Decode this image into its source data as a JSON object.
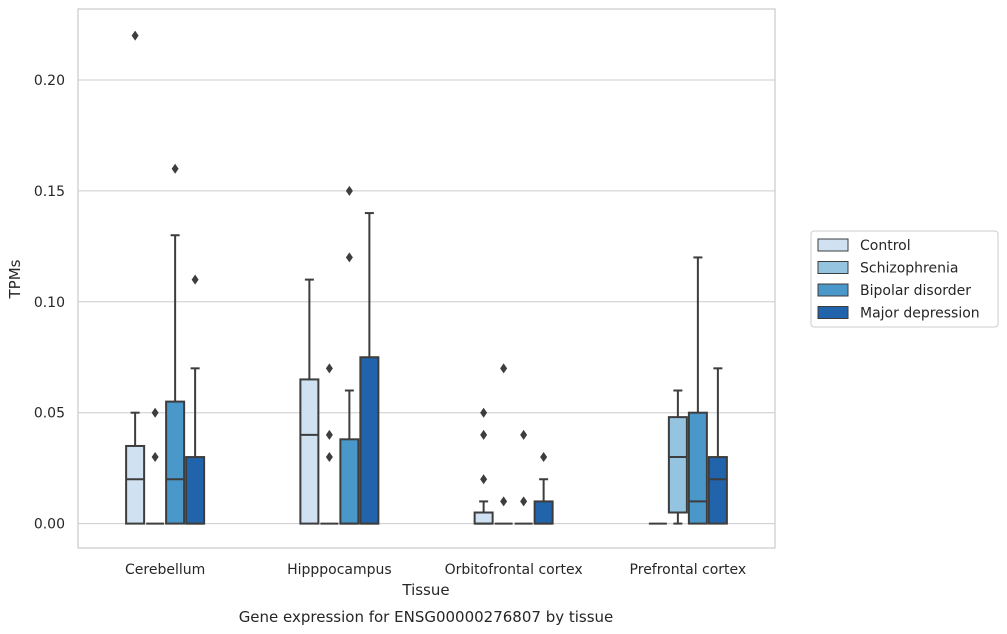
{
  "chart_data": {
    "type": "boxplot",
    "title": "",
    "caption": "Gene expression for ENSG00000276807 by tissue",
    "xlabel": "Tissue",
    "ylabel": "TPMs",
    "ylim": [
      -0.011,
      0.232
    ],
    "yticks": [
      0.0,
      0.05,
      0.1,
      0.15,
      0.2
    ],
    "ytick_labels": [
      "0.00",
      "0.05",
      "0.10",
      "0.15",
      "0.20"
    ],
    "grid": "horizontal",
    "legend_position": "right",
    "categories": [
      "Cerebellum",
      "Hipppocampus",
      "Orbitofrontal cortex",
      "Prefrontal cortex"
    ],
    "series": [
      {
        "name": "Control",
        "color": "#d0e1f2",
        "boxes": [
          {
            "whislo": 0.0,
            "q1": 0.0,
            "med": 0.02,
            "q3": 0.035,
            "whishi": 0.05,
            "fliers": [
              0.22
            ]
          },
          {
            "whislo": 0.0,
            "q1": 0.0,
            "med": 0.04,
            "q3": 0.065,
            "whishi": 0.11,
            "fliers": []
          },
          {
            "whislo": 0.0,
            "q1": 0.0,
            "med": 0.0,
            "q3": 0.005,
            "whishi": 0.01,
            "fliers": [
              0.02,
              0.04,
              0.05
            ]
          },
          {
            "whislo": 0.0,
            "q1": 0.0,
            "med": 0.0,
            "q3": 0.0,
            "whishi": 0.0,
            "fliers": []
          }
        ]
      },
      {
        "name": "Schizophrenia",
        "color": "#94c4df",
        "boxes": [
          {
            "whislo": 0.0,
            "q1": 0.0,
            "med": 0.0,
            "q3": 0.0,
            "whishi": 0.0,
            "fliers": [
              0.03,
              0.05
            ]
          },
          {
            "whislo": 0.0,
            "q1": 0.0,
            "med": 0.0,
            "q3": 0.0,
            "whishi": 0.0,
            "fliers": [
              0.03,
              0.04,
              0.07
            ]
          },
          {
            "whislo": 0.0,
            "q1": 0.0,
            "med": 0.0,
            "q3": 0.0,
            "whishi": 0.0,
            "fliers": [
              0.01,
              0.07
            ]
          },
          {
            "whislo": 0.0,
            "q1": 0.005,
            "med": 0.03,
            "q3": 0.048,
            "whishi": 0.06,
            "fliers": []
          }
        ]
      },
      {
        "name": "Bipolar disorder",
        "color": "#4a98c9",
        "boxes": [
          {
            "whislo": 0.0,
            "q1": 0.0,
            "med": 0.02,
            "q3": 0.055,
            "whishi": 0.13,
            "fliers": [
              0.16
            ]
          },
          {
            "whislo": 0.0,
            "q1": 0.0,
            "med": 0.0,
            "q3": 0.038,
            "whishi": 0.06,
            "fliers": [
              0.12,
              0.15
            ]
          },
          {
            "whislo": 0.0,
            "q1": 0.0,
            "med": 0.0,
            "q3": 0.0,
            "whishi": 0.0,
            "fliers": [
              0.01,
              0.04
            ]
          },
          {
            "whislo": 0.0,
            "q1": 0.0,
            "med": 0.01,
            "q3": 0.05,
            "whishi": 0.12,
            "fliers": []
          }
        ]
      },
      {
        "name": "Major depression",
        "color": "#2164ab",
        "boxes": [
          {
            "whislo": 0.0,
            "q1": 0.0,
            "med": 0.0,
            "q3": 0.03,
            "whishi": 0.07,
            "fliers": [
              0.11
            ]
          },
          {
            "whislo": 0.0,
            "q1": 0.0,
            "med": 0.0,
            "q3": 0.075,
            "whishi": 0.14,
            "fliers": []
          },
          {
            "whislo": 0.0,
            "q1": 0.0,
            "med": 0.0,
            "q3": 0.01,
            "whishi": 0.02,
            "fliers": [
              0.03
            ]
          },
          {
            "whislo": 0.0,
            "q1": 0.0,
            "med": 0.02,
            "q3": 0.03,
            "whishi": 0.07,
            "fliers": []
          }
        ]
      }
    ],
    "colors": {
      "edge": "#3d3d3d",
      "grid": "#cccccc",
      "frame": "#cccccc"
    }
  }
}
